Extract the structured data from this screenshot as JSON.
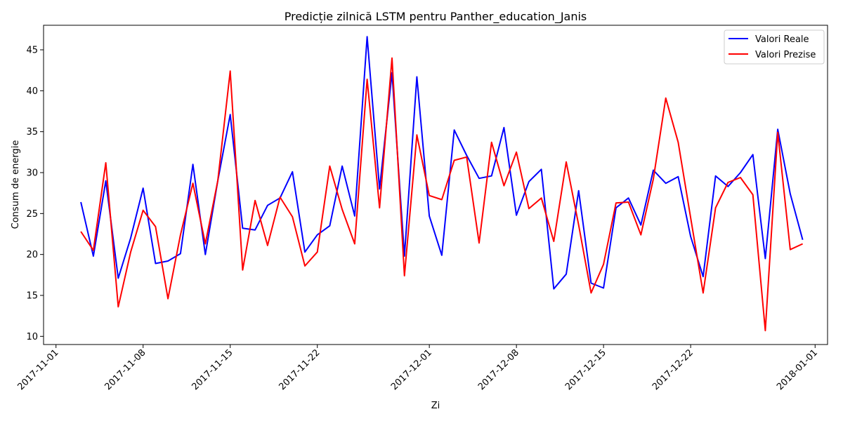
{
  "chart_data": {
    "type": "line",
    "title": "Predicție zilnică LSTM pentru Panther_education_Janis",
    "xlabel": "Zi",
    "ylabel": "Consum de energie",
    "x_start": "2017-11-03",
    "x_end": "2017-12-31",
    "xlim": [
      "2017-10-31",
      "2018-01-02"
    ],
    "ylim": [
      9,
      48
    ],
    "x_ticks": [
      "2017-11-01",
      "2017-11-08",
      "2017-11-15",
      "2017-11-22",
      "2017-12-01",
      "2017-12-08",
      "2017-12-15",
      "2017-12-22",
      "2018-01-01"
    ],
    "y_ticks": [
      10,
      15,
      20,
      25,
      30,
      35,
      40,
      45
    ],
    "grid": false,
    "legend_position": "top-right",
    "series": [
      {
        "name": "Valori Reale",
        "color": "#0000ff",
        "values": [
          26.4,
          19.8,
          29.0,
          17.1,
          22.0,
          28.1,
          18.9,
          19.2,
          20.1,
          31.0,
          20.0,
          29.0,
          37.1,
          23.2,
          23.0,
          26.0,
          26.9,
          30.1,
          20.3,
          22.4,
          23.5,
          30.8,
          24.7,
          46.6,
          28.0,
          42.2,
          19.8,
          41.7,
          24.7,
          19.9,
          35.2,
          32.1,
          29.3,
          29.6,
          35.5,
          24.8,
          28.9,
          30.4,
          15.8,
          17.6,
          27.8,
          16.5,
          15.9,
          25.7,
          26.9,
          23.6,
          30.3,
          28.7,
          29.5,
          22.2,
          17.3,
          29.6,
          28.3,
          30.0,
          32.2,
          19.5,
          35.3,
          27.4,
          21.8
        ]
      },
      {
        "name": "Valori Prezise",
        "color": "#ff0000",
        "values": [
          22.8,
          20.5,
          31.2,
          13.6,
          20.3,
          25.4,
          23.4,
          14.6,
          22.4,
          28.7,
          21.3,
          29.0,
          42.4,
          18.1,
          26.6,
          21.1,
          27.0,
          24.6,
          18.6,
          20.3,
          30.8,
          25.5,
          21.3,
          41.4,
          25.7,
          44.0,
          17.4,
          34.6,
          27.2,
          26.7,
          31.5,
          31.9,
          21.4,
          33.7,
          28.4,
          32.5,
          25.6,
          26.9,
          21.6,
          31.3,
          23.6,
          15.3,
          18.8,
          26.3,
          26.4,
          22.4,
          29.2,
          39.1,
          33.7,
          24.5,
          15.3,
          25.7,
          28.8,
          29.4,
          27.3,
          10.7,
          34.9,
          20.6,
          21.3
        ]
      }
    ]
  }
}
